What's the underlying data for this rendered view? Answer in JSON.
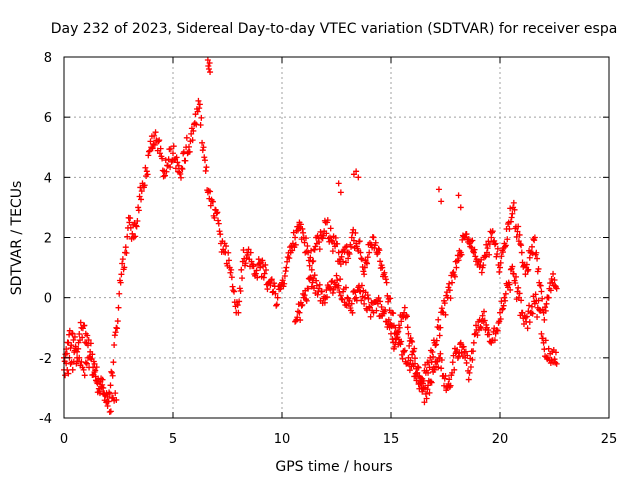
{
  "chart_data": {
    "type": "scatter",
    "title": "Day 232 of 2023, Sidereal Day-to-day VTEC variation (SDTVAR) for receiver espa",
    "xlabel": "GPS time / hours",
    "ylabel": "SDTVAR / TECUs",
    "xlim": [
      0,
      25
    ],
    "ylim": [
      -4,
      8
    ],
    "xticks": [
      "0",
      "5",
      "10",
      "15",
      "20",
      "25"
    ],
    "yticks": [
      "-4",
      "-2",
      "0",
      "2",
      "4",
      "6",
      "8"
    ],
    "grid": true,
    "marker": "+",
    "color": "#ff0000",
    "trace_hint": "curves approximating the dominant point clouds",
    "series": [
      {
        "name": "main",
        "x": [
          0.0,
          0.2,
          0.4,
          0.6,
          0.8,
          1.0,
          1.2,
          1.4,
          1.6,
          1.8,
          2.0,
          2.2,
          2.4,
          2.6,
          2.8,
          3.0,
          3.2,
          3.4,
          3.6,
          3.8,
          4.0,
          4.2,
          4.4,
          4.6,
          4.8,
          5.0,
          5.2,
          5.4,
          5.6,
          5.8,
          6.0,
          6.2,
          6.4,
          6.6,
          6.8,
          7.0,
          7.2,
          7.4,
          7.6,
          7.8,
          8.0,
          8.2,
          8.4,
          8.6,
          8.8,
          9.0,
          9.2,
          9.4,
          9.6,
          9.8,
          10.0,
          10.2,
          10.4,
          10.6,
          10.8,
          11.0,
          11.2,
          11.4,
          11.6,
          11.8,
          12.0,
          12.2,
          12.4,
          12.6,
          12.8,
          13.0,
          13.2,
          13.4,
          13.6,
          13.8,
          14.0,
          14.2,
          14.4,
          14.6,
          14.8,
          15.0,
          15.2,
          15.4,
          15.6,
          15.8,
          16.0,
          16.2,
          16.4,
          16.6,
          16.8,
          17.0,
          17.2,
          17.4,
          17.6,
          17.8,
          18.0,
          18.2,
          18.4,
          18.6,
          18.8,
          19.0,
          19.2,
          19.4,
          19.6,
          19.8,
          20.0,
          20.2,
          20.4,
          20.6,
          20.8,
          21.0,
          21.2,
          21.4,
          21.6,
          21.8,
          22.0,
          22.2,
          22.4,
          22.6
        ],
        "y": [
          -2.0,
          -1.5,
          -1.2,
          -2.0,
          -1.0,
          -1.2,
          -1.8,
          -2.2,
          -2.8,
          -3.0,
          -3.6,
          -2.5,
          -1.0,
          0.5,
          1.5,
          2.5,
          2.0,
          3.0,
          3.8,
          4.2,
          5.0,
          5.5,
          4.8,
          4.2,
          4.6,
          4.8,
          4.5,
          4.3,
          5.0,
          5.2,
          5.8,
          6.3,
          5.0,
          3.5,
          3.2,
          2.8,
          1.8,
          1.5,
          1.0,
          0.2,
          -0.5,
          1.2,
          1.5,
          1.2,
          0.8,
          1.0,
          0.8,
          0.5,
          0.2,
          0.0,
          0.5,
          1.0,
          1.5,
          2.0,
          2.5,
          2.0,
          1.5,
          1.2,
          1.8,
          2.0,
          2.5,
          2.0,
          1.8,
          1.5,
          1.2,
          1.5,
          2.0,
          1.8,
          1.5,
          1.0,
          1.5,
          2.0,
          1.5,
          1.0,
          0.5,
          -0.5,
          -1.0,
          -1.5,
          -1.8,
          -2.0,
          -2.2,
          -2.5,
          -2.8,
          -2.5,
          -2.0,
          -1.5,
          -1.0,
          -0.5,
          0.0,
          0.5,
          1.0,
          1.5,
          2.0,
          1.8,
          1.5,
          1.2,
          1.0,
          1.5,
          2.0,
          1.8,
          1.0,
          1.8,
          2.5,
          3.0,
          2.2,
          1.5,
          1.0,
          1.5,
          2.0,
          0.5,
          -0.5,
          0.0,
          0.5,
          0.3
        ]
      },
      {
        "name": "lower",
        "x": [
          0.0,
          0.3,
          0.6,
          0.9,
          1.2,
          1.5,
          1.8,
          2.1,
          2.4,
          10.6,
          10.8,
          11.0,
          11.2,
          11.4,
          11.6,
          11.8,
          12.0,
          12.2,
          12.4,
          12.6,
          12.8,
          13.0,
          13.2,
          13.4,
          13.6,
          13.8,
          14.0,
          14.2,
          14.4,
          14.6,
          14.8,
          15.0,
          15.2,
          15.4,
          15.6,
          15.8,
          16.0,
          16.2,
          16.4,
          16.6,
          16.8,
          17.0,
          17.2,
          17.4,
          17.6,
          17.8,
          18.0,
          18.2,
          18.4,
          18.6,
          18.8,
          19.0,
          19.2,
          19.4,
          19.6,
          19.8,
          20.0,
          20.2,
          20.4,
          20.6,
          20.8,
          21.0,
          21.2,
          21.4,
          21.6,
          21.8,
          22.0,
          22.2,
          22.4,
          22.6
        ],
        "y": [
          -2.4,
          -2.2,
          -1.8,
          -2.4,
          -2.0,
          -2.8,
          -3.2,
          -3.8,
          -3.4,
          -0.8,
          -0.5,
          0.0,
          0.3,
          0.5,
          0.4,
          0.2,
          0.0,
          0.3,
          0.5,
          0.4,
          0.2,
          0.0,
          -0.2,
          0.0,
          0.2,
          0.0,
          -0.3,
          -0.5,
          -0.2,
          -0.6,
          -0.8,
          -1.2,
          -1.5,
          -1.0,
          -0.5,
          -1.2,
          -1.8,
          -2.5,
          -3.0,
          -3.2,
          -2.8,
          -2.4,
          -2.0,
          -2.6,
          -3.0,
          -2.5,
          -1.8,
          -1.5,
          -2.0,
          -2.5,
          -1.5,
          -0.8,
          -0.6,
          -1.0,
          -1.5,
          -1.2,
          -0.5,
          0.0,
          0.5,
          0.8,
          0.2,
          -0.5,
          -0.8,
          -0.5,
          -0.2,
          -0.4,
          -1.5,
          -2.0,
          -1.8,
          -2.2
        ]
      },
      {
        "name": "outliers",
        "x": [
          6.6,
          6.62,
          6.65,
          6.68,
          6.7,
          12.6,
          12.7,
          13.3,
          13.4,
          13.5,
          17.2,
          17.3,
          18.1,
          18.2
        ],
        "y": [
          7.9,
          7.7,
          7.6,
          7.8,
          7.5,
          3.8,
          3.5,
          4.1,
          4.2,
          4.0,
          3.6,
          3.2,
          3.4,
          3.0
        ]
      }
    ]
  }
}
